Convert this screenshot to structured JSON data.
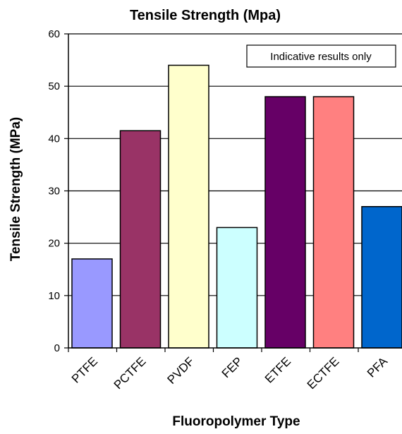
{
  "chart_data": {
    "type": "bar",
    "title": "Tensile Strength (Mpa)",
    "xlabel": "Fluoropolymer Type",
    "ylabel": "Tensile Strength (MPa)",
    "ylim": [
      0,
      60
    ],
    "yticks": [
      0,
      10,
      20,
      30,
      40,
      50,
      60
    ],
    "grid": true,
    "annotation": "Indicative results only",
    "categories": [
      "PTFE",
      "PCTFE",
      "PVDF",
      "FEP",
      "ETFE",
      "ECTFE",
      "PFA"
    ],
    "values": [
      17,
      41.5,
      54,
      23,
      48,
      48,
      27
    ],
    "colors": [
      "#9999ff",
      "#993366",
      "#ffffcc",
      "#ccffff",
      "#660066",
      "#ff8080",
      "#0066cc"
    ]
  }
}
